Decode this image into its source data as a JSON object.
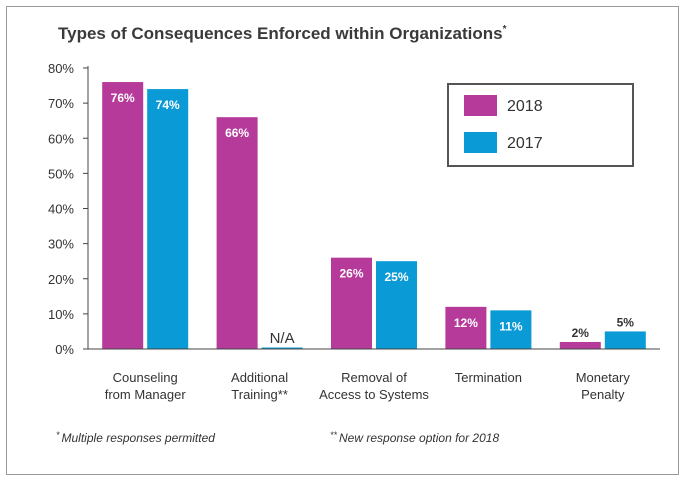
{
  "chart_data": {
    "type": "bar",
    "title": "Types of Consequences Enforced within Organizations",
    "title_marker": "*",
    "categories": [
      [
        "Counseling",
        "from Manager"
      ],
      [
        "Additional",
        "Training**"
      ],
      [
        "Removal of",
        "Access to Systems"
      ],
      [
        "Termination"
      ],
      [
        "Monetary",
        "Penalty"
      ]
    ],
    "series": [
      {
        "name": "2018",
        "color": "#b63a9a",
        "values": [
          76,
          66,
          26,
          12,
          2
        ],
        "labels": [
          "76%",
          "66%",
          "26%",
          "12%",
          "2%"
        ]
      },
      {
        "name": "2017",
        "color": "#0a9ad6",
        "values": [
          74,
          null,
          25,
          11,
          5
        ],
        "labels": [
          "74%",
          "N/A",
          "25%",
          "11%",
          "5%"
        ]
      }
    ],
    "ylim": [
      0,
      80
    ],
    "yticks": [
      "0%",
      "10%",
      "20%",
      "30%",
      "40%",
      "50%",
      "60%",
      "70%",
      "80%"
    ],
    "legend_position": "top-right",
    "grid": false
  },
  "footnotes": {
    "left_marker": "*",
    "left": "Multiple responses permitted",
    "right_marker": "**",
    "right": "New response option for 2018"
  }
}
